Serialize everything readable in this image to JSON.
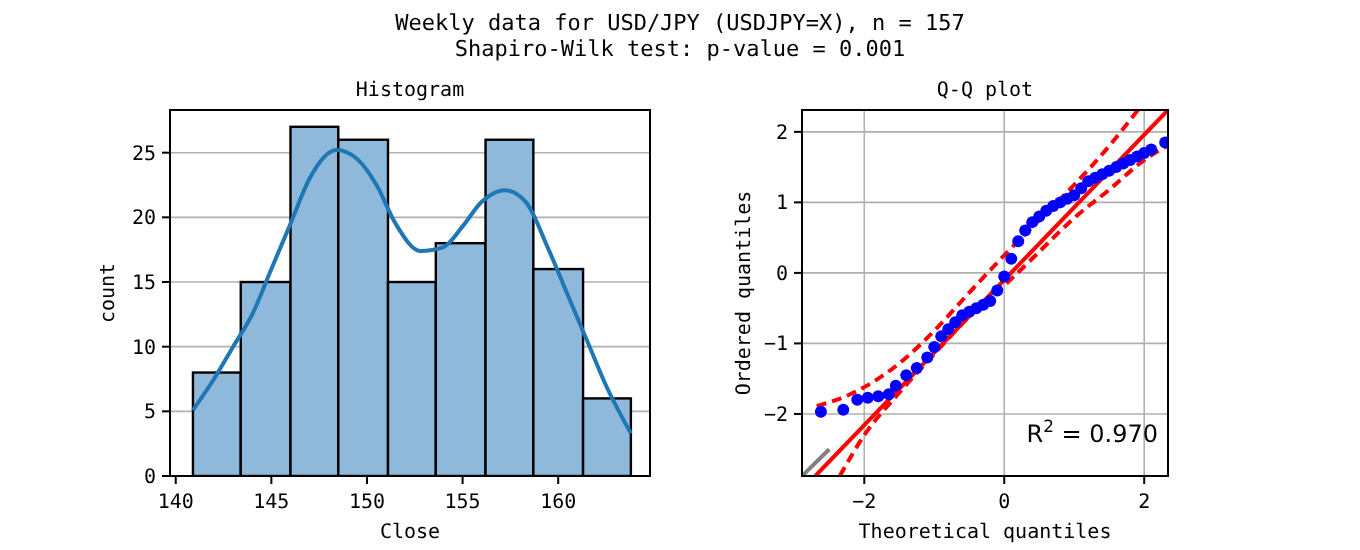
{
  "chart_data": [
    {
      "type": "histogram",
      "title": "Histogram",
      "xlabel": "Close",
      "ylabel": "count",
      "annotations": [
        "Weekly data for USD/JPY (USDJPY=X), n = 157",
        "Shapiro-Wilk test: p-value = 0.001"
      ],
      "bins": [
        140.9,
        143.4,
        146.0,
        148.5,
        151.1,
        153.6,
        156.2,
        158.7,
        161.3,
        163.8
      ],
      "values": [
        8,
        15,
        27,
        26,
        15,
        18,
        26,
        16,
        6
      ],
      "color": "#8fb9da",
      "series": [
        {
          "type": "line",
          "color": "#1f77b4",
          "x": [
            140.9,
            142,
            143,
            144,
            145,
            146,
            147,
            148.4,
            149.5,
            150.5,
            151.5,
            152.8,
            154,
            155,
            156,
            157.2,
            158.3,
            159.5,
            160.5,
            161.5,
            162.5,
            163.8
          ],
          "values": [
            5.1,
            7.5,
            10,
            12.5,
            16,
            19.5,
            23,
            25.2,
            24.5,
            22.5,
            19.5,
            17.4,
            17.7,
            19.3,
            21.2,
            22.1,
            21.2,
            17.5,
            14,
            10.5,
            7,
            3.3
          ]
        }
      ],
      "xlim": [
        139.7,
        164.8
      ],
      "ylim": [
        0,
        28.3
      ],
      "xticks": [
        140,
        145,
        150,
        155,
        160
      ],
      "yticks": [
        0,
        5,
        10,
        15,
        20,
        25
      ],
      "grid": "y"
    },
    {
      "type": "scatter",
      "title": "Q-Q plot",
      "xlabel": "Theoretical quantiles",
      "ylabel": "Ordered quantiles",
      "annotations": [
        "R$^{2}$ = 0.970"
      ],
      "xlim": [
        -2.89,
        2.34
      ],
      "ylim": [
        -2.88,
        2.31
      ],
      "xticks": [
        -2,
        0,
        2
      ],
      "yticks": [
        -2,
        -1,
        0,
        1,
        2
      ],
      "grid": true,
      "series": [
        {
          "type": "line",
          "color": "#808080",
          "line_style": "solid",
          "x": [
            -2.89,
            -2.5
          ],
          "values": [
            -2.88,
            -2.5
          ]
        },
        {
          "type": "scatter",
          "color": "#0000ff",
          "marker": "circle",
          "x": [
            -2.62,
            -2.3,
            -2.1,
            -1.95,
            -1.8,
            -1.65,
            -1.55,
            -1.4,
            -1.25,
            -1.1,
            -1,
            -0.9,
            -0.8,
            -0.7,
            -0.6,
            -0.5,
            -0.4,
            -0.3,
            -0.2,
            -0.1,
            0,
            0.1,
            0.2,
            0.3,
            0.4,
            0.5,
            0.6,
            0.7,
            0.8,
            0.9,
            1,
            1.1,
            1.2,
            1.3,
            1.4,
            1.5,
            1.6,
            1.7,
            1.8,
            1.9,
            2,
            2.1,
            2.3
          ],
          "values": [
            -1.97,
            -1.94,
            -1.8,
            -1.77,
            -1.75,
            -1.72,
            -1.6,
            -1.45,
            -1.35,
            -1.2,
            -1.05,
            -0.9,
            -0.8,
            -0.7,
            -0.6,
            -0.55,
            -0.5,
            -0.45,
            -0.4,
            -0.25,
            -0.05,
            0.2,
            0.45,
            0.6,
            0.72,
            0.8,
            0.88,
            0.95,
            1,
            1.05,
            1.1,
            1.2,
            1.3,
            1.35,
            1.4,
            1.45,
            1.5,
            1.55,
            1.6,
            1.65,
            1.7,
            1.75,
            1.85
          ]
        },
        {
          "type": "line",
          "color": "#ff0000",
          "line_style": "solid",
          "x": [
            -2.7,
            2.34
          ],
          "values": [
            -2.88,
            2.31
          ]
        },
        {
          "type": "line",
          "color": "#ff0000",
          "line_style": "dashed",
          "x": [
            -2.68,
            -2.2,
            -1.8,
            -1.4,
            -1,
            -0.5,
            0,
            0.5,
            1,
            1.5,
            1.91
          ],
          "values": [
            -1.89,
            -1.72,
            -1.5,
            -1.2,
            -0.82,
            -0.28,
            0.25,
            0.75,
            1.25,
            1.8,
            2.31
          ]
        },
        {
          "type": "line",
          "color": "#ff0000",
          "line_style": "dashed",
          "x": [
            -2.35,
            -2,
            -1.5,
            -1,
            -0.5,
            0,
            0.5,
            1,
            1.5,
            2,
            2.34
          ],
          "values": [
            -2.88,
            -2.3,
            -1.7,
            -1.15,
            -0.62,
            -0.18,
            0.3,
            0.78,
            1.18,
            1.6,
            1.81
          ]
        }
      ]
    }
  ]
}
